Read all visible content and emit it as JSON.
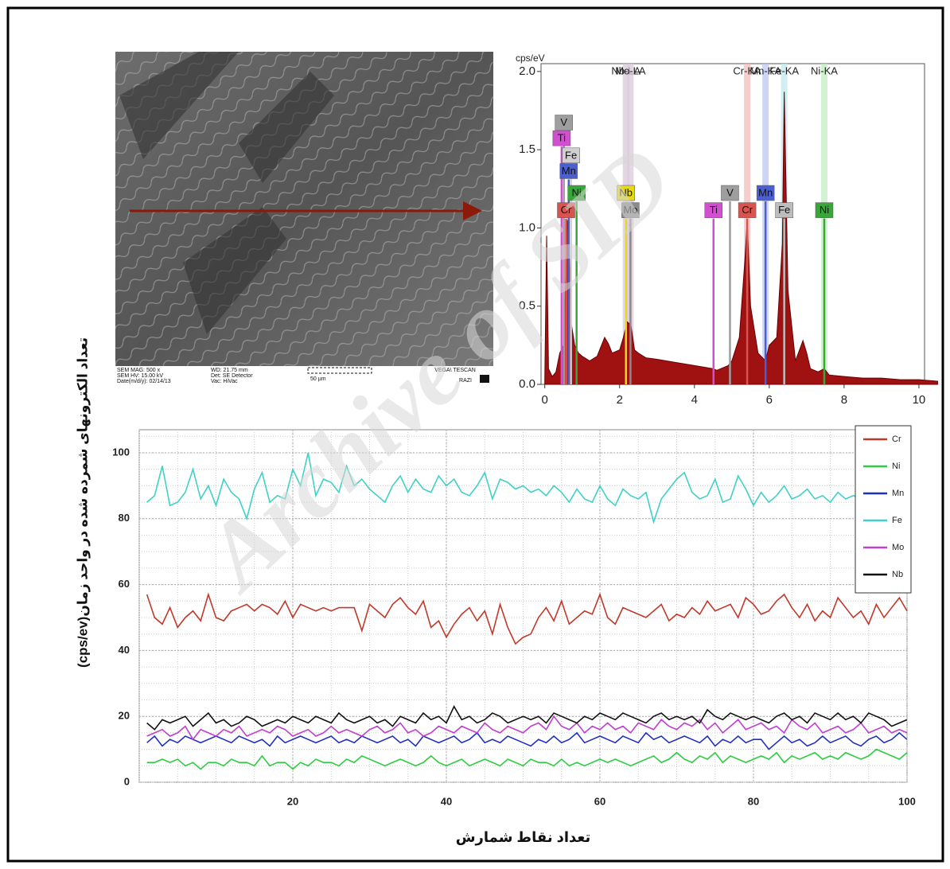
{
  "sem_image": {
    "mag": "SEM MAG: 500 x",
    "hv": "SEM HV: 15.00 kV",
    "date": "Date(m/d/y): 02/14/13",
    "wd": "WD: 21.75 mm",
    "det": "Det: SE Detector",
    "vac": "Vac: HiVac",
    "scale": "50 µm",
    "maker": "VEGA\\ TESCAN",
    "lab": "RAZI"
  },
  "watermark": "Archive of SID",
  "chart_data": [
    {
      "type": "area",
      "y_label": "cps/eV",
      "color": "#a01212",
      "x": [
        0,
        0.05,
        0.1,
        0.2,
        0.3,
        0.4,
        0.5,
        0.55,
        0.6,
        0.65,
        0.7,
        0.8,
        0.9,
        1.0,
        1.2,
        1.4,
        1.6,
        1.7,
        1.8,
        2.0,
        2.1,
        2.2,
        2.3,
        2.4,
        2.5,
        2.7,
        3.0,
        3.5,
        4.0,
        4.5,
        4.6,
        4.9,
        5.0,
        5.2,
        5.35,
        5.41,
        5.5,
        5.7,
        5.9,
        6.0,
        6.2,
        6.35,
        6.4,
        6.5,
        6.7,
        6.9,
        7.0,
        7.1,
        7.3,
        7.47,
        7.6,
        8.0,
        8.5,
        9.0,
        9.5,
        10.0,
        10.5
      ],
      "values": [
        0.02,
        0.95,
        0.1,
        0.05,
        0.08,
        0.2,
        0.25,
        0.6,
        1.05,
        0.9,
        0.4,
        0.25,
        0.2,
        0.18,
        0.15,
        0.18,
        0.3,
        0.26,
        0.2,
        0.22,
        0.3,
        0.4,
        0.38,
        0.22,
        0.2,
        0.17,
        0.16,
        0.14,
        0.12,
        0.1,
        0.09,
        0.12,
        0.15,
        0.3,
        0.8,
        1.05,
        0.5,
        0.2,
        0.15,
        0.25,
        0.3,
        0.9,
        1.87,
        0.6,
        0.15,
        0.28,
        0.2,
        0.1,
        0.08,
        0.1,
        0.06,
        0.05,
        0.04,
        0.04,
        0.03,
        0.03,
        0.02
      ],
      "xlim": [
        -0.1,
        10.15
      ],
      "ylim": [
        0,
        2.05
      ],
      "xticks": [
        0,
        2,
        4,
        6,
        8,
        10
      ],
      "yticks": [
        {
          "value": 0,
          "label": "0.0"
        },
        {
          "value": 0.5,
          "label": "0.5"
        },
        {
          "value": 1,
          "label": "1.0"
        },
        {
          "value": 1.5,
          "label": "1.5"
        },
        {
          "value": 2,
          "label": "2.0"
        }
      ],
      "top_labels": [
        {
          "text": "Nb-LA",
          "x": 2.17,
          "color": "#d9c6d9"
        },
        {
          "text": "Mo-LA",
          "x": 2.29,
          "color": "#d9c6d9"
        },
        {
          "text": "Cr-KA",
          "x": 5.41,
          "color": "#f2b8b8"
        },
        {
          "text": "Mn-KA",
          "x": 5.9,
          "color": "#b8c4f2"
        },
        {
          "text": "Fe-KA",
          "x": 6.4,
          "color": "#bde8ee"
        },
        {
          "text": "Ni-KA",
          "x": 7.47,
          "color": "#bdeebd"
        }
      ],
      "markers": [
        {
          "label": "V",
          "x": 0.51,
          "height": 1.62,
          "color": "#9e9e9e"
        },
        {
          "label": "Ti",
          "x": 0.45,
          "height": 1.52,
          "color": "#d050d0"
        },
        {
          "label": "Fe",
          "x": 0.7,
          "height": 1.41,
          "color": "#d0d0d0"
        },
        {
          "label": "Mn",
          "x": 0.64,
          "height": 1.31,
          "color": "#4b5fd0"
        },
        {
          "label": "Ni",
          "x": 0.85,
          "height": 1.17,
          "color": "#3aa63a"
        },
        {
          "label": "Cr",
          "x": 0.57,
          "height": 1.06,
          "color": "#d9534f"
        },
        {
          "label": "Nb",
          "x": 2.17,
          "height": 1.17,
          "color": "#e6d81a"
        },
        {
          "label": "Mo",
          "x": 2.29,
          "height": 1.06,
          "color": "#8a8a8a"
        },
        {
          "label": "Ti",
          "x": 4.51,
          "height": 1.06,
          "color": "#d050d0"
        },
        {
          "label": "V",
          "x": 4.95,
          "height": 1.17,
          "color": "#9e9e9e"
        },
        {
          "label": "Cr",
          "x": 5.41,
          "height": 1.06,
          "color": "#d9534f"
        },
        {
          "label": "Mn",
          "x": 5.9,
          "height": 1.17,
          "color": "#4b5fd0"
        },
        {
          "label": "Fe",
          "x": 6.4,
          "height": 1.06,
          "color": "#bdbdbd"
        },
        {
          "label": "Ni",
          "x": 7.47,
          "height": 1.06,
          "color": "#3aa63a"
        }
      ]
    },
    {
      "type": "line",
      "x_label": "تعداد نقاط شمارش",
      "y_label": "تعداد الکترونهای شمرده شده در واحد زمان(cps/ev)",
      "xlim": [
        0,
        100
      ],
      "ylim": [
        0,
        107
      ],
      "xticks": [
        20,
        40,
        60,
        80,
        100
      ],
      "yticks": [
        0,
        20,
        40,
        60,
        80,
        100
      ],
      "grid": true,
      "legend": "upper right",
      "x": [
        1,
        2,
        3,
        4,
        5,
        6,
        7,
        8,
        9,
        10,
        11,
        12,
        13,
        14,
        15,
        16,
        17,
        18,
        19,
        20,
        21,
        22,
        23,
        24,
        25,
        26,
        27,
        28,
        29,
        30,
        31,
        32,
        33,
        34,
        35,
        36,
        37,
        38,
        39,
        40,
        41,
        42,
        43,
        44,
        45,
        46,
        47,
        48,
        49,
        50,
        51,
        52,
        53,
        54,
        55,
        56,
        57,
        58,
        59,
        60,
        61,
        62,
        63,
        64,
        65,
        66,
        67,
        68,
        69,
        70,
        71,
        72,
        73,
        74,
        75,
        76,
        77,
        78,
        79,
        80,
        81,
        82,
        83,
        84,
        85,
        86,
        87,
        88,
        89,
        90,
        91,
        92,
        93,
        94,
        95,
        96,
        97,
        98,
        99,
        100
      ],
      "series": [
        {
          "name": "Cr",
          "color": "#c0392b",
          "values": [
            57,
            50,
            48,
            53,
            47,
            50,
            52,
            49,
            57,
            50,
            49,
            52,
            53,
            54,
            52,
            54,
            53,
            51,
            55,
            50,
            54,
            53,
            52,
            53,
            52,
            53,
            53,
            53,
            46,
            54,
            52,
            50,
            54,
            56,
            53,
            51,
            55,
            47,
            49,
            44,
            48,
            51,
            53,
            49,
            52,
            45,
            54,
            47,
            42,
            44,
            45,
            50,
            53,
            49,
            55,
            48,
            50,
            52,
            51,
            57,
            50,
            48,
            53,
            52,
            51,
            50,
            52,
            54,
            49,
            51,
            50,
            53,
            51,
            55,
            52,
            53,
            54,
            50,
            56,
            54,
            51,
            52,
            55,
            57,
            53,
            50,
            54,
            49,
            52,
            50,
            56,
            53,
            50,
            52,
            48,
            54,
            50,
            53,
            56,
            52
          ]
        },
        {
          "name": "Ni",
          "color": "#2ecc40",
          "values": [
            6,
            6,
            7,
            6,
            7,
            5,
            6,
            4,
            6,
            6,
            5,
            7,
            6,
            6,
            5,
            8,
            5,
            6,
            6,
            4,
            6,
            5,
            7,
            6,
            6,
            5,
            7,
            6,
            8,
            7,
            6,
            5,
            6,
            7,
            6,
            5,
            6,
            8,
            6,
            5,
            6,
            7,
            5,
            6,
            7,
            6,
            5,
            7,
            6,
            5,
            7,
            6,
            6,
            5,
            7,
            5,
            6,
            5,
            6,
            7,
            6,
            7,
            6,
            5,
            6,
            7,
            8,
            6,
            7,
            9,
            7,
            6,
            8,
            7,
            9,
            6,
            8,
            7,
            6,
            7,
            8,
            7,
            9,
            6,
            8,
            7,
            8,
            9,
            7,
            8,
            7,
            9,
            8,
            7,
            8,
            10,
            9,
            8,
            7,
            9
          ]
        },
        {
          "name": "Mn",
          "color": "#1f2fbf",
          "values": [
            12,
            14,
            11,
            13,
            12,
            14,
            13,
            12,
            13,
            14,
            13,
            12,
            14,
            13,
            12,
            13,
            11,
            14,
            12,
            13,
            14,
            13,
            12,
            13,
            14,
            12,
            13,
            12,
            14,
            13,
            12,
            13,
            14,
            12,
            13,
            11,
            14,
            13,
            12,
            13,
            14,
            12,
            13,
            15,
            12,
            13,
            12,
            14,
            13,
            12,
            11,
            13,
            12,
            14,
            12,
            13,
            15,
            12,
            13,
            14,
            13,
            12,
            14,
            13,
            12,
            15,
            13,
            14,
            12,
            13,
            14,
            13,
            12,
            14,
            11,
            13,
            12,
            14,
            12,
            13,
            13,
            10,
            12,
            14,
            12,
            13,
            11,
            12,
            14,
            12,
            13,
            14,
            12,
            11,
            13,
            14,
            12,
            13,
            15,
            13
          ]
        },
        {
          "name": "Fe",
          "color": "#40d0c8",
          "values": [
            85,
            87,
            96,
            84,
            85,
            88,
            95,
            86,
            90,
            84,
            92,
            88,
            86,
            80,
            89,
            94,
            85,
            87,
            86,
            95,
            90,
            100,
            87,
            92,
            91,
            88,
            96,
            90,
            92,
            89,
            87,
            85,
            90,
            93,
            88,
            92,
            89,
            88,
            93,
            90,
            92,
            88,
            87,
            90,
            94,
            86,
            92,
            91,
            89,
            90,
            88,
            89,
            87,
            90,
            88,
            85,
            89,
            86,
            85,
            90,
            86,
            84,
            89,
            87,
            86,
            88,
            79,
            86,
            89,
            92,
            94,
            88,
            86,
            87,
            92,
            85,
            86,
            93,
            89,
            84,
            88,
            85,
            87,
            90,
            86,
            87,
            89,
            86,
            87,
            85,
            88,
            86,
            87,
            86,
            92,
            86,
            87,
            88,
            92,
            88
          ]
        },
        {
          "name": "Mo",
          "color": "#c040d0",
          "values": [
            14,
            15,
            16,
            14,
            15,
            17,
            13,
            16,
            15,
            14,
            16,
            15,
            17,
            14,
            15,
            16,
            15,
            17,
            16,
            14,
            15,
            16,
            14,
            15,
            17,
            15,
            16,
            15,
            14,
            16,
            17,
            15,
            16,
            18,
            15,
            16,
            14,
            15,
            17,
            16,
            15,
            17,
            16,
            15,
            18,
            16,
            15,
            17,
            16,
            15,
            17,
            18,
            16,
            20,
            17,
            16,
            18,
            15,
            17,
            16,
            18,
            16,
            17,
            15,
            18,
            17,
            16,
            19,
            17,
            16,
            18,
            17,
            19,
            16,
            18,
            15,
            17,
            19,
            16,
            17,
            18,
            16,
            17,
            15,
            19,
            17,
            16,
            18,
            15,
            16,
            17,
            15,
            16,
            18,
            15,
            16,
            17,
            15,
            16,
            15
          ]
        },
        {
          "name": "Nb",
          "color": "#111111",
          "values": [
            18,
            16,
            19,
            18,
            19,
            20,
            17,
            19,
            21,
            18,
            19,
            17,
            18,
            20,
            19,
            17,
            18,
            19,
            18,
            20,
            19,
            18,
            20,
            19,
            18,
            21,
            19,
            18,
            19,
            20,
            18,
            19,
            17,
            20,
            19,
            18,
            21,
            19,
            20,
            18,
            23,
            19,
            20,
            18,
            19,
            21,
            20,
            18,
            19,
            20,
            19,
            20,
            18,
            21,
            20,
            19,
            18,
            20,
            19,
            21,
            20,
            19,
            21,
            20,
            19,
            18,
            20,
            21,
            19,
            20,
            19,
            20,
            18,
            22,
            20,
            19,
            21,
            20,
            19,
            20,
            19,
            18,
            20,
            21,
            19,
            20,
            18,
            21,
            20,
            19,
            21,
            19,
            20,
            18,
            21,
            20,
            19,
            17,
            18,
            19
          ]
        }
      ]
    }
  ]
}
